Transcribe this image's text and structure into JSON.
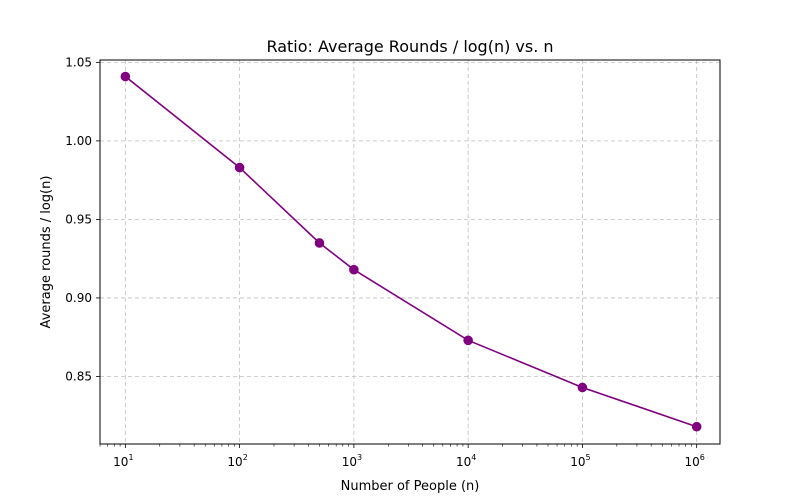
{
  "chart_data": {
    "type": "line",
    "title": "Ratio: Average Rounds / log(n) vs. n",
    "xlabel": "Number of People (n)",
    "ylabel": "Average rounds / log(n)",
    "x_scale": "log",
    "xlim": [
      6,
      1600000
    ],
    "ylim": [
      0.807,
      1.0515
    ],
    "grid": true,
    "x_ticks": [
      {
        "value": 10,
        "base": "10",
        "exp": "1"
      },
      {
        "value": 100,
        "base": "10",
        "exp": "2"
      },
      {
        "value": 1000,
        "base": "10",
        "exp": "3"
      },
      {
        "value": 10000,
        "base": "10",
        "exp": "4"
      },
      {
        "value": 100000,
        "base": "10",
        "exp": "5"
      },
      {
        "value": 1000000,
        "base": "10",
        "exp": "6"
      }
    ],
    "y_ticks": [
      "0.85",
      "0.90",
      "0.95",
      "1.00",
      "1.05"
    ],
    "series": [
      {
        "color": "#800080",
        "marker": "circle",
        "x": [
          10,
          100,
          500,
          1000,
          10000,
          100000,
          1000000
        ],
        "y": [
          1.041,
          0.983,
          0.935,
          0.918,
          0.873,
          0.843,
          0.818
        ]
      }
    ]
  }
}
